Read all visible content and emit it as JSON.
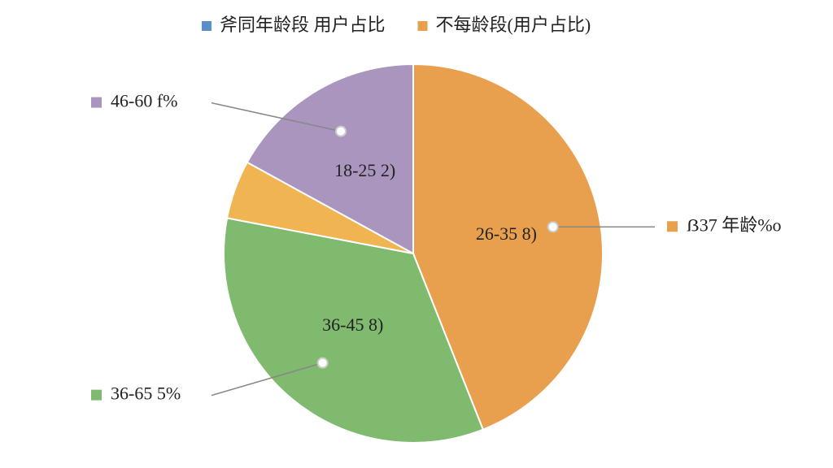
{
  "chart_data": {
    "type": "pie",
    "legend": [
      {
        "name": "斧同年龄段 用户占比",
        "color": "#5b8fc9"
      },
      {
        "name": "不每龄段(用户占比)",
        "color": "#e9a04e"
      }
    ],
    "categories": [
      "26-35 8)",
      "36-45 8)",
      null,
      "18-25 2)"
    ],
    "values": [
      44,
      34,
      5,
      17
    ],
    "colors": [
      "#e9a04e",
      "#7fba6e",
      "#f0b552",
      "#a995bd"
    ],
    "callout_labels": [
      "ẞ37 年龄%o",
      "36-65 5%",
      null,
      "46-60 f%"
    ]
  }
}
